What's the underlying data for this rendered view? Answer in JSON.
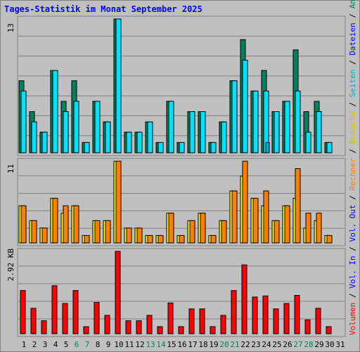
{
  "title": "Tages-Statistik im Monat September 2025",
  "colors": {
    "background": "#c0c0c0",
    "title": "#0000ff",
    "gridline": "#808080",
    "anfragen": "#00805c",
    "dateien": "#00e2ff",
    "seiten": "#00b0d0",
    "besuche": "#ffff00",
    "rechner": "#ff8000",
    "vol_out": "#fff000",
    "vol_in": "#0000ff",
    "volumen": "#ff0000",
    "weekend_label": "#00805c",
    "day_label": "#000000"
  },
  "right_legend": [
    {
      "text": "Volumen",
      "color": "#ff0000"
    },
    {
      "text": " / ",
      "color": "#000000"
    },
    {
      "text": "Vol. In",
      "color": "#0000ff"
    },
    {
      "text": " / ",
      "color": "#000000"
    },
    {
      "text": "Vol. Out",
      "color": "#0000ff"
    },
    {
      "text": " / ",
      "color": "#000000"
    },
    {
      "text": "Rechner",
      "color": "#ff8000"
    },
    {
      "text": " / ",
      "color": "#000000"
    },
    {
      "text": "Besuche",
      "color": "#e0c000"
    },
    {
      "text": " / ",
      "color": "#000000"
    },
    {
      "text": "Seiten",
      "color": "#00b0d0"
    },
    {
      "text": " / ",
      "color": "#000000"
    },
    {
      "text": "Dateien",
      "color": "#0000ff"
    },
    {
      "text": " / ",
      "color": "#000000"
    },
    {
      "text": "Anfragen",
      "color": "#00805c"
    }
  ],
  "chart_data": [
    {
      "type": "bar",
      "title": "Tages-Statistik im Monat September 2025",
      "ymax_label": "13",
      "ylim": [
        0,
        13
      ],
      "categories": [
        "1",
        "2",
        "3",
        "4",
        "5",
        "6",
        "7",
        "8",
        "9",
        "10",
        "11",
        "12",
        "13",
        "14",
        "15",
        "16",
        "17",
        "18",
        "19",
        "20",
        "21",
        "22",
        "23",
        "24",
        "25",
        "26",
        "27",
        "28",
        "29",
        "30",
        "31"
      ],
      "weekend_days": [
        "6",
        "7",
        "13",
        "14",
        "20",
        "21",
        "27",
        "28"
      ],
      "series": [
        {
          "name": "Anfragen",
          "values": [
            7,
            4,
            2,
            8,
            5,
            7,
            1,
            5,
            3,
            13,
            2,
            2,
            3,
            1,
            5,
            1,
            4,
            4,
            1,
            3,
            7,
            11,
            6,
            8,
            4,
            5,
            10,
            4,
            5,
            1,
            0
          ]
        },
        {
          "name": "Dateien",
          "values": [
            6,
            3,
            2,
            8,
            4,
            5,
            1,
            5,
            3,
            13,
            2,
            2,
            3,
            1,
            5,
            1,
            4,
            4,
            1,
            3,
            7,
            9,
            6,
            6,
            4,
            5,
            6,
            2,
            4,
            1,
            0
          ]
        },
        {
          "name": "Seiten",
          "values": [
            0,
            0,
            0,
            0,
            0,
            0,
            0,
            0,
            0,
            0,
            0,
            0,
            0,
            0,
            0,
            0,
            0,
            0,
            0,
            0,
            0,
            0,
            0,
            1,
            0,
            0,
            0,
            0,
            0,
            0,
            0
          ]
        }
      ]
    },
    {
      "type": "bar",
      "ymax_label": "11",
      "ylim": [
        0,
        11
      ],
      "categories": [
        "1",
        "2",
        "3",
        "4",
        "5",
        "6",
        "7",
        "8",
        "9",
        "10",
        "11",
        "12",
        "13",
        "14",
        "15",
        "16",
        "17",
        "18",
        "19",
        "20",
        "21",
        "22",
        "23",
        "24",
        "25",
        "26",
        "27",
        "28",
        "29",
        "30",
        "31"
      ],
      "series": [
        {
          "name": "Besuche",
          "values": [
            5,
            3,
            2,
            6,
            4,
            5,
            1,
            3,
            3,
            11,
            2,
            2,
            1,
            1,
            4,
            1,
            3,
            4,
            1,
            3,
            7,
            9,
            6,
            5,
            3,
            5,
            6,
            2,
            3,
            1,
            0
          ]
        },
        {
          "name": "Rechner",
          "values": [
            5,
            3,
            2,
            6,
            5,
            5,
            1,
            3,
            3,
            11,
            2,
            2,
            1,
            1,
            4,
            1,
            3,
            4,
            1,
            3,
            7,
            11,
            6,
            7,
            3,
            5,
            10,
            4,
            4,
            1,
            0
          ]
        }
      ]
    },
    {
      "type": "bar",
      "ymax_label": "2.92 KB",
      "ylim": [
        0,
        2.92
      ],
      "categories": [
        "1",
        "2",
        "3",
        "4",
        "5",
        "6",
        "7",
        "8",
        "9",
        "10",
        "11",
        "12",
        "13",
        "14",
        "15",
        "16",
        "17",
        "18",
        "19",
        "20",
        "21",
        "22",
        "23",
        "24",
        "25",
        "26",
        "27",
        "28",
        "29",
        "30",
        "31"
      ],
      "series": [
        {
          "name": "Volumen",
          "values": [
            1.53,
            0.9,
            0.46,
            1.7,
            1.07,
            1.53,
            0.25,
            1.11,
            0.65,
            2.92,
            0.46,
            0.46,
            0.65,
            0.25,
            1.09,
            0.25,
            0.88,
            0.88,
            0.25,
            0.65,
            1.53,
            2.44,
            1.3,
            1.34,
            0.88,
            1.07,
            1.36,
            0.49,
            0.9,
            0.25,
            0
          ]
        }
      ]
    }
  ]
}
